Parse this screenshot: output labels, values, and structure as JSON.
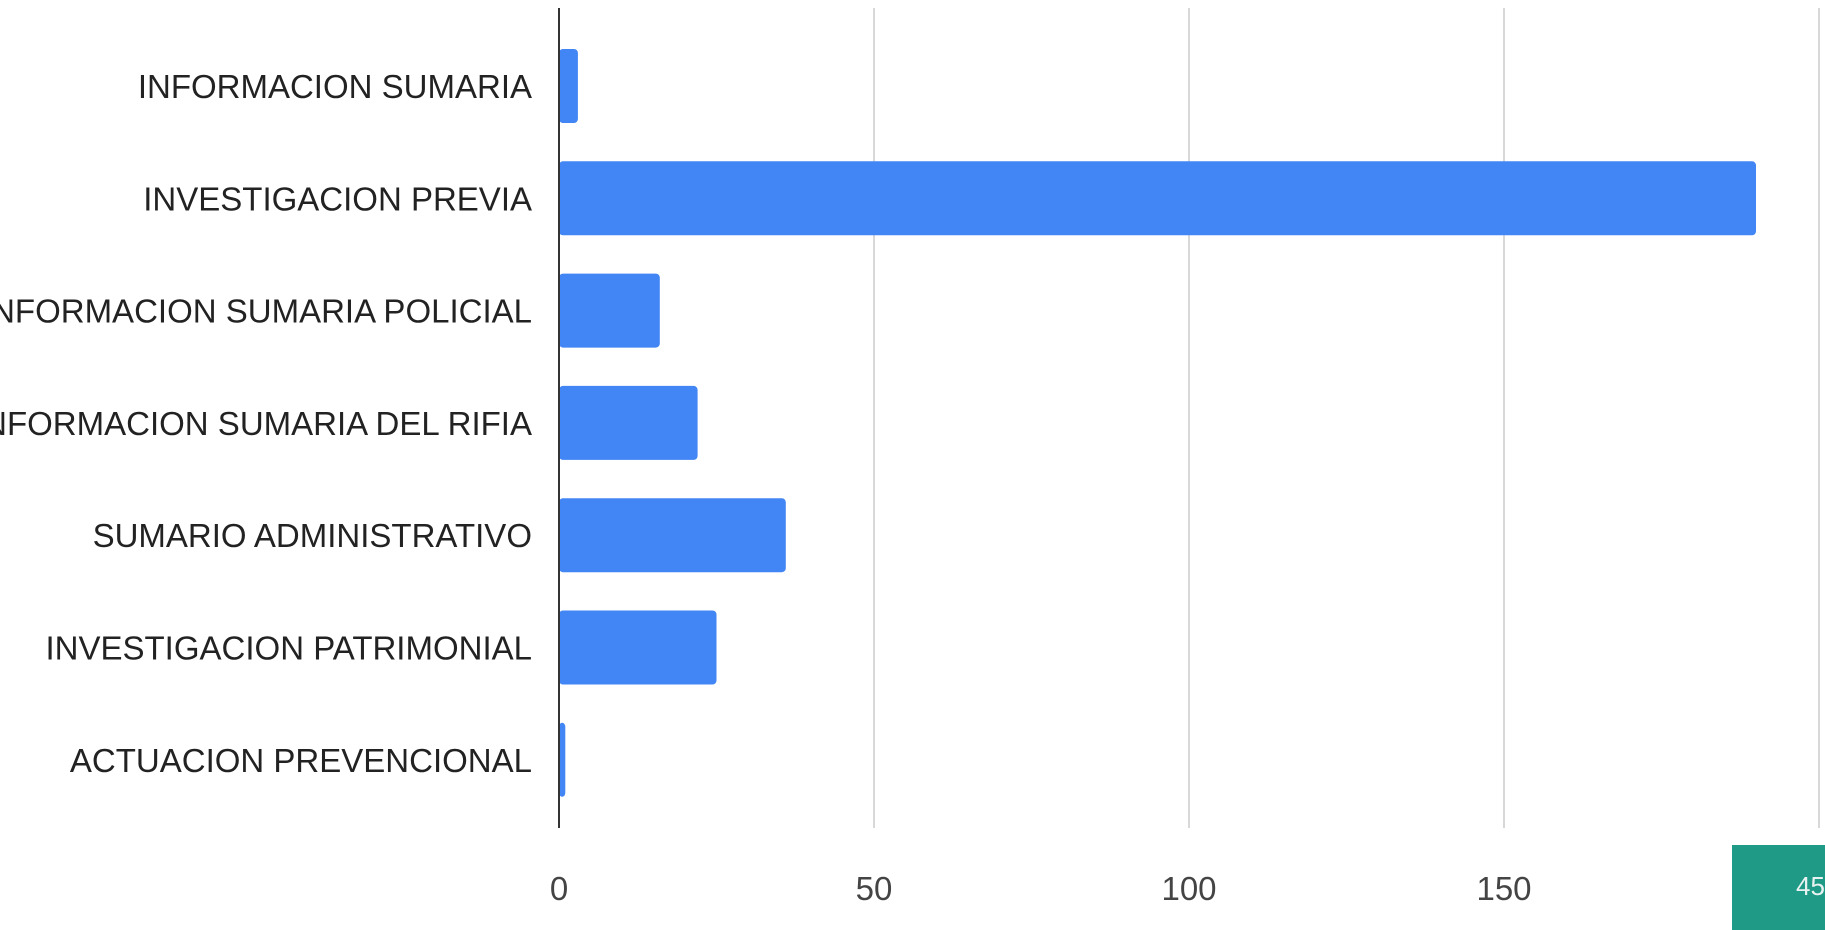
{
  "chart_data": {
    "type": "bar",
    "orientation": "horizontal",
    "categories": [
      "INFORMACION SUMARIA",
      "INVESTIGACION PREVIA",
      "INFORMACION SUMARIA POLICIAL",
      "INFORMACION SUMARIA DEL RIFIA",
      "SUMARIO ADMINISTRATIVO",
      "INVESTIGACION PATRIMONIAL",
      "ACTUACION PREVENCIONAL"
    ],
    "values": [
      3,
      190,
      16,
      22,
      36,
      25,
      1
    ],
    "x_ticks": [
      0,
      50,
      100,
      150
    ],
    "xlim": [
      0,
      200
    ],
    "grid": true,
    "bar_color": "#4285f4",
    "grid_color": "#cccccc",
    "axis_color": "#333333"
  },
  "page_badge": {
    "label": "45",
    "color": "#1f9a86"
  }
}
